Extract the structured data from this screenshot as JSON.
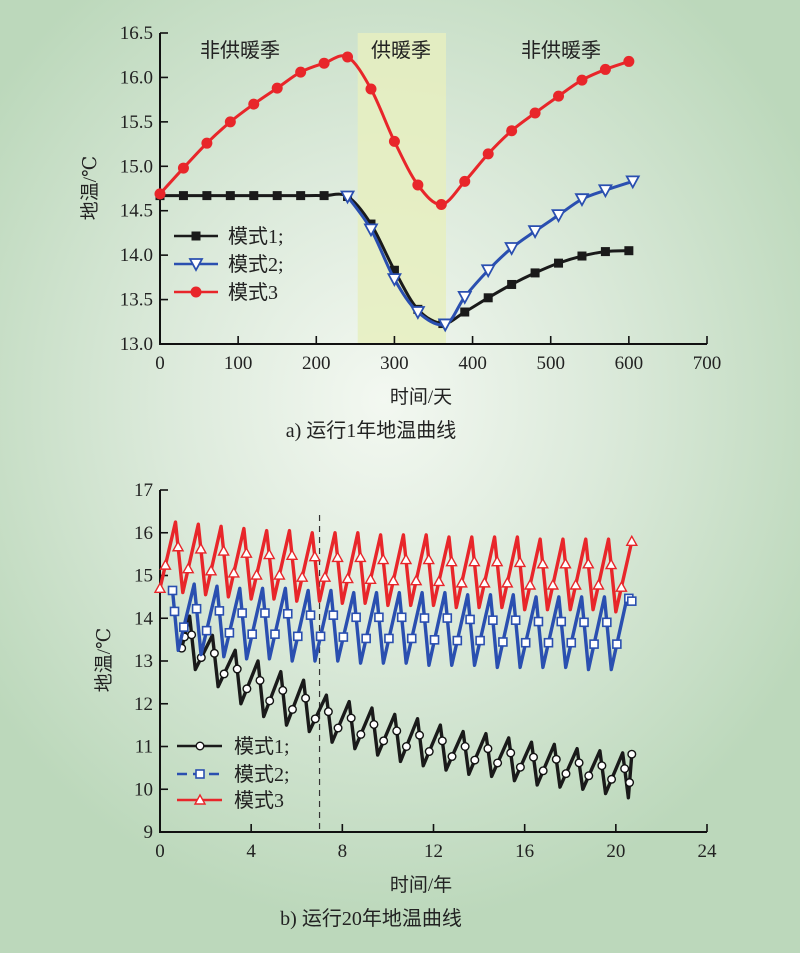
{
  "chart_data": [
    {
      "id": "a",
      "type": "line",
      "caption": "a) 运行1年地温曲线",
      "xlabel": "时间/天",
      "ylabel": "地温/℃",
      "xlim": [
        0,
        700
      ],
      "ylim": [
        13.0,
        16.5
      ],
      "xticks": [
        0,
        100,
        200,
        300,
        400,
        500,
        600,
        700
      ],
      "xtick_labels": [
        "0",
        "100",
        "200",
        "300",
        "400",
        "500",
        "600",
        "700"
      ],
      "yticks": [
        13.0,
        13.5,
        14.0,
        14.5,
        15.0,
        15.5,
        16.0,
        16.5
      ],
      "ytick_labels": [
        "13.0",
        "13.5",
        "14.0",
        "14.5",
        "15.0",
        "15.5",
        "16.0",
        "16.5"
      ],
      "grid": false,
      "legend_position": "middle-left",
      "shaded_region": {
        "label": "供暖季",
        "x_range": [
          253,
          366
        ],
        "color": "#e6efc0"
      },
      "annotations": [
        {
          "text": "非供暖季",
          "x": 110,
          "y": 16.3
        },
        {
          "text": "供暖季",
          "x": 308,
          "y": 16.3
        },
        {
          "text": "非供暖季",
          "x": 510,
          "y": 16.3
        }
      ],
      "series": [
        {
          "name": "模式1;",
          "color": "#1a1a1a",
          "marker": "square-filled",
          "x": [
            0,
            30,
            60,
            90,
            120,
            150,
            180,
            210,
            240,
            270,
            300,
            330,
            362,
            390,
            420,
            450,
            480,
            510,
            540,
            570,
            600
          ],
          "y": [
            14.67,
            14.67,
            14.67,
            14.67,
            14.67,
            14.67,
            14.67,
            14.67,
            14.66,
            14.35,
            13.83,
            13.39,
            13.23,
            13.36,
            13.52,
            13.67,
            13.8,
            13.91,
            13.99,
            14.04,
            14.05
          ]
        },
        {
          "name": "模式2;",
          "color": "#2a4fb0",
          "marker": "triangle-down-open",
          "x": [
            240,
            270,
            300,
            330,
            365,
            390,
            420,
            450,
            480,
            510,
            540,
            570,
            605
          ],
          "y": [
            14.66,
            14.29,
            13.73,
            13.36,
            13.22,
            13.53,
            13.83,
            14.08,
            14.27,
            14.45,
            14.63,
            14.73,
            14.83
          ]
        },
        {
          "name": "模式3",
          "color": "#e8262a",
          "marker": "circle-filled",
          "x": [
            0,
            30,
            60,
            90,
            120,
            150,
            180,
            210,
            240,
            270,
            300,
            330,
            360,
            390,
            420,
            450,
            480,
            510,
            540,
            570,
            600
          ],
          "y": [
            14.69,
            14.98,
            15.26,
            15.5,
            15.7,
            15.88,
            16.06,
            16.16,
            16.23,
            15.87,
            15.28,
            14.79,
            14.57,
            14.83,
            15.14,
            15.4,
            15.6,
            15.79,
            15.97,
            16.09,
            16.18
          ]
        }
      ]
    },
    {
      "id": "b",
      "type": "line",
      "caption": "b) 运行20年地温曲线",
      "xlabel": "时间/年",
      "ylabel": "地温/℃",
      "xlim": [
        0,
        24
      ],
      "ylim": [
        9,
        17
      ],
      "xticks": [
        0,
        4,
        8,
        12,
        16,
        20,
        24
      ],
      "xtick_labels": [
        "0",
        "4",
        "8",
        "12",
        "16",
        "20",
        "24"
      ],
      "yticks": [
        9,
        10,
        11,
        12,
        13,
        14,
        15,
        16,
        17
      ],
      "ytick_labels": [
        "9",
        "10",
        "11",
        "12",
        "13",
        "14",
        "15",
        "16",
        "17"
      ],
      "grid": false,
      "legend_position": "bottom-left",
      "vertical_reference_line": {
        "x": 7,
        "style": "dashed"
      },
      "series": [
        {
          "name": "模式1;",
          "color": "#1a1a1a",
          "marker": "circle-open",
          "start": [
            0.95,
            13.3
          ],
          "peaks": [
            14.05,
            13.6,
            13.25,
            13.0,
            12.75,
            12.55,
            12.2,
            12.05,
            11.9,
            11.75,
            11.65,
            11.5,
            11.35,
            11.3,
            11.2,
            11.1,
            11.05,
            10.95,
            10.9,
            10.85
          ],
          "troughs": [
            12.8,
            12.4,
            12.0,
            11.7,
            11.5,
            11.35,
            11.1,
            10.95,
            10.8,
            10.65,
            10.55,
            10.45,
            10.35,
            10.3,
            10.2,
            10.1,
            10.05,
            10.0,
            9.9,
            9.8
          ],
          "end": [
            20.7,
            10.82
          ]
        },
        {
          "name": "模式2;",
          "color": "#2a4fb0",
          "marker": "square-open",
          "start": [
            0.55,
            14.65
          ],
          "peaks": [
            14.8,
            14.75,
            14.7,
            14.7,
            14.7,
            14.65,
            14.65,
            14.6,
            14.6,
            14.6,
            14.6,
            14.6,
            14.55,
            14.55,
            14.55,
            14.5,
            14.5,
            14.5,
            14.5,
            14.5
          ],
          "troughs": [
            13.25,
            13.15,
            13.1,
            13.05,
            13.05,
            13.0,
            13.0,
            13.0,
            12.95,
            12.95,
            12.95,
            12.9,
            12.9,
            12.9,
            12.85,
            12.85,
            12.85,
            12.85,
            12.8,
            12.8
          ],
          "end": [
            20.7,
            14.4
          ]
        },
        {
          "name": "模式3",
          "color": "#e8262a",
          "marker": "triangle-up-open",
          "start": [
            0,
            14.7
          ],
          "peaks": [
            16.25,
            16.2,
            16.15,
            16.1,
            16.05,
            16.05,
            16.0,
            16.0,
            16.0,
            15.95,
            15.95,
            15.95,
            15.9,
            15.9,
            15.9,
            15.9,
            15.85,
            15.85,
            15.85,
            15.85
          ],
          "troughs": [
            14.6,
            14.55,
            14.5,
            14.45,
            14.45,
            14.4,
            14.4,
            14.35,
            14.35,
            14.3,
            14.3,
            14.3,
            14.25,
            14.25,
            14.25,
            14.2,
            14.2,
            14.2,
            14.2,
            14.15
          ],
          "end": [
            20.7,
            15.8
          ]
        }
      ]
    }
  ]
}
